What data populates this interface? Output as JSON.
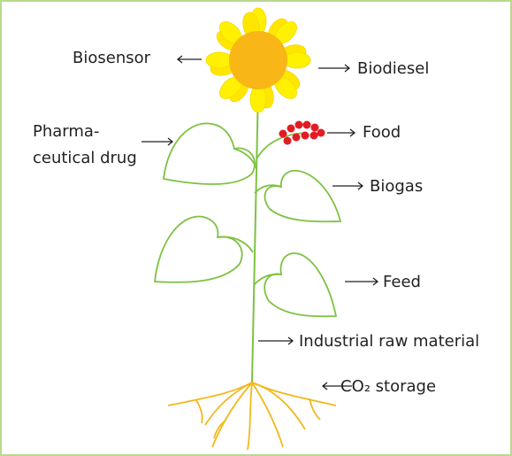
{
  "labels": {
    "biosensor": "Biosensor",
    "biodiesel": "Biodiesel",
    "pharmaceutical_drug": [
      "Pharma-",
      "ceutical drug"
    ],
    "food": "Food",
    "biogas": "Biogas",
    "feed": "Feed",
    "industrial_raw_material": "Industrial raw material",
    "co2_storage": "CO₂ storage"
  }
}
